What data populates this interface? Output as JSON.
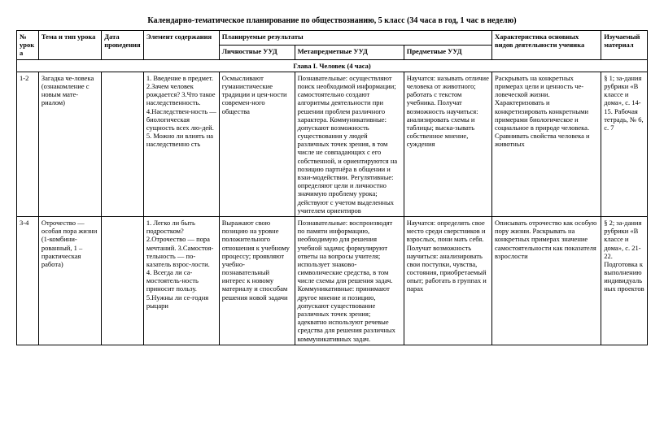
{
  "title": "Календарно-тематическое планирование по обществознанию, 5 класс  (34 часа в год, 1 час в неделю)",
  "headers": {
    "num": "№ урока",
    "topic": "Тема и тип урока",
    "date": "Дата проведения",
    "element": "Элемент содержания",
    "planned": "Планируемые результаты",
    "personal": "Личностные УУД",
    "meta": "Метапредметные УУД",
    "subject": "Предметные УУД",
    "activity": "Характеристика основных видов деятельности ученика",
    "material": "Изучаемый материал"
  },
  "chapter1": "Глава I. Человек  (4 часа)",
  "rows": [
    {
      "num": "1-2",
      "topic": "Загадка че-ловека (ознакомление с новым мате-риалом)",
      "date": "",
      "element": "1.  Введение в предмет. 2.Зачем человек рождается? 3.Что такое наследственность. 4.Наследствен-ность — биологическая сущность всех лю-дей. 5. Можно ли влиять на  наследственно сть",
      "personal": "Осмысливают гуманистические традиции и цен-ности современ-ного общества",
      "meta": "Познавательные: осуществляют поиск необходимой информации; самостоятельно создают алгоритмы деятельности при решении проблем различного характера. Коммуникативные: допускают возможность существования у людей различных точек зрения, в том числе не совпадающих с его собственной, и ориентируются на позицию партнёра в общении и взаи-модействии.  Регулятивные: определяют цели и личностно значимую проблему урока; действуют с учетом выделенных учителем ориентиров",
      "subject": "Научатся: называть отличие человека от животного; работать с текстом учебника. Получат возможность научиться: анализировать схемы и таблицы; выска-зывать собственное мнение, суждения",
      "activity": "Раскрывать на конкретных примерах цели и ценность че-ловеческой жизни. Характеризовать и конкретизировать конкретными примерами биологическое и социальное в природе человека. Сравнивать свойства человека и животных",
      "material": "§ 1; за-дания рубрики «В классе и дома», с. 14-15. Рабочая тетрадь, № 6, с. 7"
    },
    {
      "num": "3-4",
      "topic": "Отрочество — особая пора жизни (1-комбини-рованный, 1 – практическая работа)",
      "date": "",
      "element": "1. Легко ли быть подростком? 2.Отрочество — пора мечтаний. 3.Самостоя-тельность — по-казатель взрос-лости. 4.  Всегда ли са-мостоятель-ность  приносит пользу. 5.Нужны ли се-годня рыцари",
      "personal": "Выражают свою позицию на уровне положительного отношения к учебному процессу; проявляют учебно-познавательный интерес к новому материалу и способам решения новой задачи",
      "meta": "Познавательные: воспроизводят по памяти информацию, необходимую для решения учебной задачи; формулируют ответы на вопросы учителя; использует знаково-символические средства, в том числе схемы для решения задач. Коммуникативные: принимают другое мнение и позицию, допускают существование различных точек зрения; адекватно используют речевые средства для решения различных коммуникативных задач.",
      "subject": "Научатся: определять свое место среди сверстников и взрослых, пони мать себя. Получат возможность научиться: анализировать свои поступки, чувства, состояния, приобретаемый опыт; работать в группах и парах",
      "activity": "Описывать отрочество как особую пору жизни.  Раскрывать на конкретных примерах значение самостоятельности как показателя взрослости",
      "material": "§ 2; за-дания рубрики «В классе и дома», с. 21-22. Подготовка к выполнению индивидуальных проектов"
    }
  ]
}
